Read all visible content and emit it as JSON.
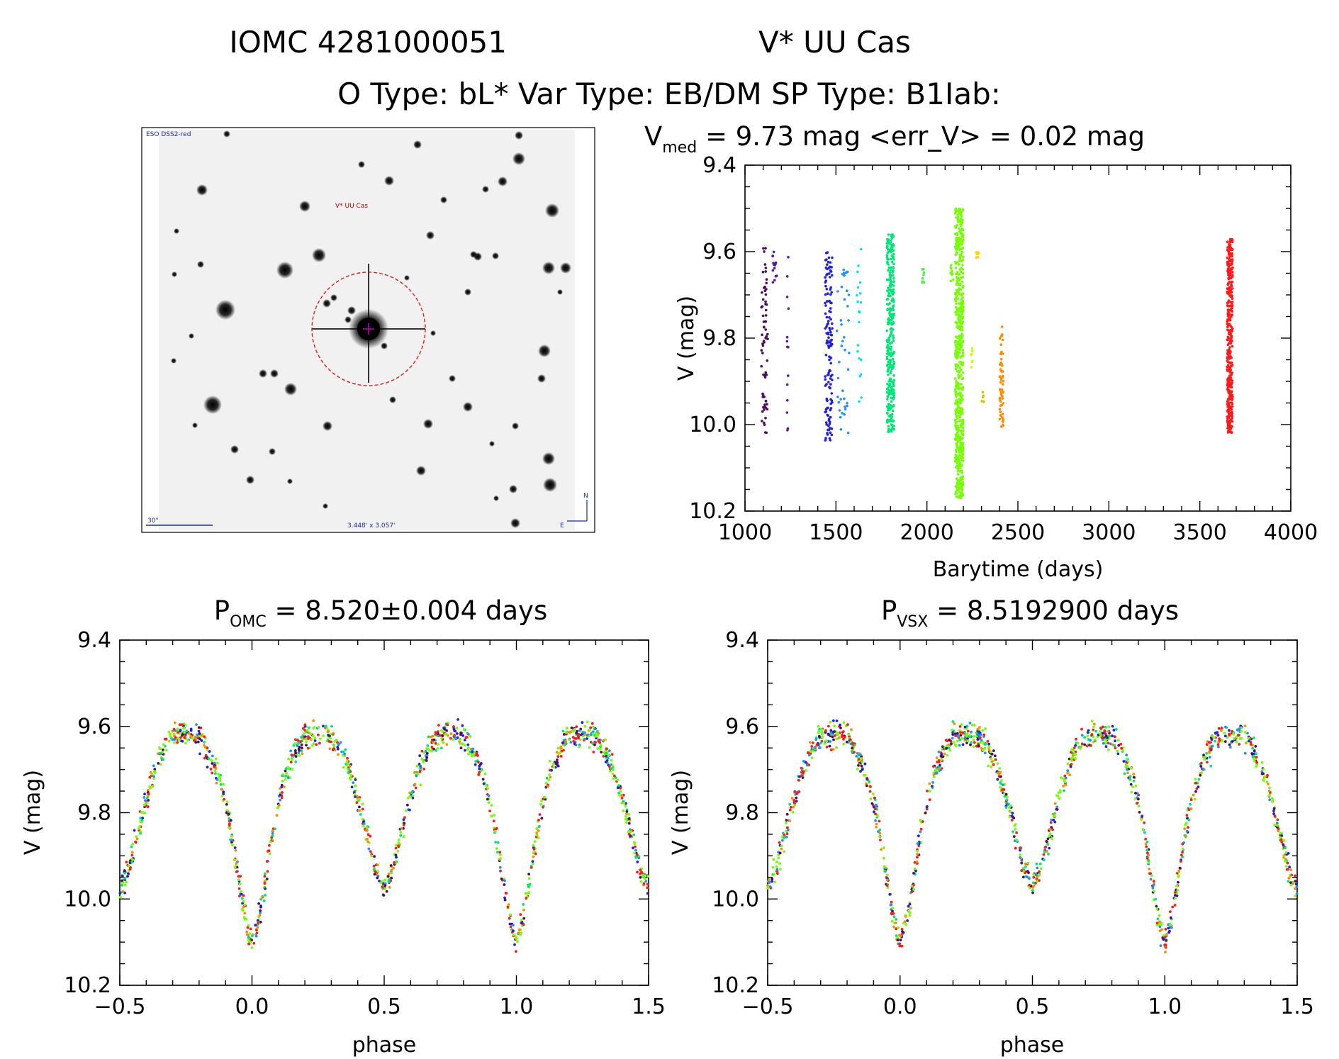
{
  "header": {
    "line1_id": "IOMC 4281000051",
    "line1_name": "V* UU Cas",
    "line2": "O Type: bL*  Var Type: EB/DM  SP Type: B1Iab:"
  },
  "sky_image": {
    "survey_label": "ESO DSS2-red",
    "target_label": "V* UU Cas",
    "scale_label": "30\"",
    "fov_label": "3.448' x 3.057'",
    "north_label": "N",
    "east_label": "E"
  },
  "colors": {
    "season_palette": [
      "#4a0e5c",
      "#5a189a",
      "#2020e0",
      "#1e90ff",
      "#00e5ee",
      "#00e676",
      "#76ff03",
      "#c6ff00",
      "#ffd600",
      "#ff8c00",
      "#ff1a1a"
    ],
    "frame": "#000000",
    "circle": "#cc2222",
    "cross": "#d000d0"
  },
  "chart_data": [
    {
      "id": "lightcurve",
      "type": "scatter",
      "title": {
        "prefix": "V",
        "sub": "med",
        "rest": " = 9.73 mag <err_V> = 0.02 mag"
      },
      "xlabel": "Barytime (days)",
      "ylabel": "V (mag)",
      "xlim": [
        1000,
        4000
      ],
      "ylim": [
        10.2,
        9.4
      ],
      "x_ticks": [
        "1000",
        "1500",
        "2000",
        "2500",
        "3000",
        "3500",
        "4000"
      ],
      "y_ticks": [
        "9.4",
        "9.6",
        "9.8",
        "10.0",
        "10.2"
      ],
      "median_mag": 9.73,
      "mean_err_mag": 0.02,
      "seasons": [
        {
          "t_start": 1090,
          "t_end": 1125,
          "mag_min": 9.59,
          "mag_max": 10.02,
          "n": 70,
          "color": "#4a0e5c"
        },
        {
          "t_start": 1150,
          "t_end": 1175,
          "mag_min": 9.6,
          "mag_max": 9.68,
          "n": 14,
          "color": "#5a189a"
        },
        {
          "t_start": 1230,
          "t_end": 1240,
          "mag_min": 9.6,
          "mag_max": 10.02,
          "n": 14,
          "color": "#5a189a"
        },
        {
          "t_start": 1440,
          "t_end": 1480,
          "mag_min": 9.6,
          "mag_max": 10.04,
          "n": 140,
          "color": "#2020e0"
        },
        {
          "t_start": 1505,
          "t_end": 1575,
          "mag_min": 9.64,
          "mag_max": 10.02,
          "n": 40,
          "color": "#1e90ff"
        },
        {
          "t_start": 1615,
          "t_end": 1640,
          "mag_min": 9.59,
          "mag_max": 9.95,
          "n": 20,
          "color": "#00e5ee"
        },
        {
          "t_start": 1780,
          "t_end": 1820,
          "mag_min": 9.56,
          "mag_max": 10.03,
          "n": 320,
          "color": "#00e676"
        },
        {
          "t_start": 1975,
          "t_end": 1985,
          "mag_min": 9.64,
          "mag_max": 9.68,
          "n": 10,
          "color": "#4cee4c"
        },
        {
          "t_start": 2130,
          "t_end": 2145,
          "mag_min": 9.63,
          "mag_max": 9.67,
          "n": 10,
          "color": "#76ff03"
        },
        {
          "t_start": 2155,
          "t_end": 2200,
          "mag_min": 9.5,
          "mag_max": 10.17,
          "n": 600,
          "color": "#76ff03"
        },
        {
          "t_start": 2240,
          "t_end": 2250,
          "mag_min": 9.82,
          "mag_max": 9.88,
          "n": 8,
          "color": "#c6ff00"
        },
        {
          "t_start": 2270,
          "t_end": 2285,
          "mag_min": 9.6,
          "mag_max": 9.62,
          "n": 8,
          "color": "#ffd600"
        },
        {
          "t_start": 2300,
          "t_end": 2315,
          "mag_min": 9.92,
          "mag_max": 9.95,
          "n": 6,
          "color": "#d8c000"
        },
        {
          "t_start": 2400,
          "t_end": 2420,
          "mag_min": 9.77,
          "mag_max": 10.01,
          "n": 60,
          "color": "#ff8c00"
        },
        {
          "t_start": 3650,
          "t_end": 3680,
          "mag_min": 9.57,
          "mag_max": 10.02,
          "n": 400,
          "color": "#ff1a1a"
        }
      ]
    },
    {
      "id": "phase_omc",
      "type": "scatter",
      "title": {
        "prefix": "P",
        "sub": "OMC",
        "rest": " = 8.520±0.004 days"
      },
      "period_days": 8.52,
      "period_err_days": 0.004,
      "xlabel": "phase",
      "ylabel": "V (mag)",
      "xlim": [
        -0.5,
        1.5
      ],
      "ylim": [
        10.2,
        9.4
      ],
      "x_ticks": [
        "−0.5",
        "0.0",
        "0.5",
        "1.0",
        "1.5"
      ],
      "y_ticks": [
        "9.4",
        "9.6",
        "9.8",
        "10.0",
        "10.2"
      ],
      "curve_model": {
        "max_mag": 9.62,
        "primary_min_mag": 10.1,
        "secondary_min_mag": 9.97,
        "primary_min_phase": 0.0,
        "secondary_min_phase": 0.5
      }
    },
    {
      "id": "phase_vsx",
      "type": "scatter",
      "title": {
        "prefix": "P",
        "sub": "VSX",
        "rest": " = 8.5192900 days"
      },
      "period_days": 8.51929,
      "xlabel": "phase",
      "ylabel": "V (mag)",
      "xlim": [
        -0.5,
        1.5
      ],
      "ylim": [
        10.2,
        9.4
      ],
      "x_ticks": [
        "−0.5",
        "0.0",
        "0.5",
        "1.0",
        "1.5"
      ],
      "y_ticks": [
        "9.4",
        "9.6",
        "9.8",
        "10.0",
        "10.2"
      ],
      "curve_model": {
        "max_mag": 9.62,
        "primary_min_mag": 10.1,
        "secondary_min_mag": 9.97,
        "primary_min_phase": 0.0,
        "secondary_min_phase": 0.5
      }
    }
  ]
}
